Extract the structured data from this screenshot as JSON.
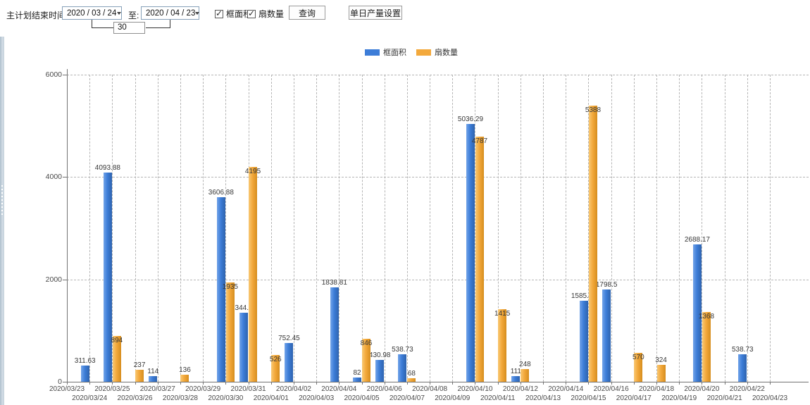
{
  "toolbar": {
    "label": "主计划结束时间:",
    "date_from": "2020 / 03 / 24",
    "to_label": "至:",
    "date_to": "2020 / 04 / 23",
    "span_days": "30",
    "checkbox_frame": {
      "label": "框面积",
      "checked": true
    },
    "checkbox_fan": {
      "label": "扇数量",
      "checked": true
    },
    "query_button": "查询",
    "daily_output_button": "单日产量设置"
  },
  "chart_data": {
    "type": "bar",
    "title": "",
    "xlabel": "",
    "ylabel": "",
    "ylim": [
      0,
      6000
    ],
    "yticks": [
      0,
      2000,
      4000,
      6000
    ],
    "grid": true,
    "legend_position": "top",
    "categories": [
      "2020/03/23",
      "2020/03/24",
      "2020/03/25",
      "2020/03/26",
      "2020/03/27",
      "2020/03/28",
      "2020/03/29",
      "2020/03/30",
      "2020/03/31",
      "2020/04/01",
      "2020/04/02",
      "2020/04/03",
      "2020/04/04",
      "2020/04/05",
      "2020/04/06",
      "2020/04/07",
      "2020/04/08",
      "2020/04/09",
      "2020/04/10",
      "2020/04/11",
      "2020/04/12",
      "2020/04/13",
      "2020/04/14",
      "2020/04/15",
      "2020/04/16",
      "2020/04/17",
      "2020/04/18",
      "2020/04/19",
      "2020/04/20",
      "2020/04/21",
      "2020/04/22",
      "2020/04/23"
    ],
    "series": [
      {
        "name": "框面积",
        "color": "#3d7dd8",
        "values": [
          null,
          311.63,
          4093.88,
          null,
          114,
          null,
          null,
          3606.88,
          1344.95,
          null,
          752.45,
          null,
          1838.81,
          82,
          430.98,
          538.73,
          null,
          null,
          5036.29,
          null,
          111,
          null,
          null,
          1585.96,
          1798.5,
          null,
          null,
          null,
          2688.17,
          null,
          538.73,
          null
        ]
      },
      {
        "name": "扇数量",
        "color": "#f3a93c",
        "values": [
          null,
          null,
          894,
          237,
          null,
          136,
          null,
          1935,
          4195,
          526,
          null,
          null,
          null,
          846,
          null,
          68,
          null,
          null,
          4787,
          1415,
          248,
          null,
          null,
          5388,
          null,
          570,
          324,
          null,
          1368,
          null,
          null,
          null
        ]
      }
    ]
  }
}
